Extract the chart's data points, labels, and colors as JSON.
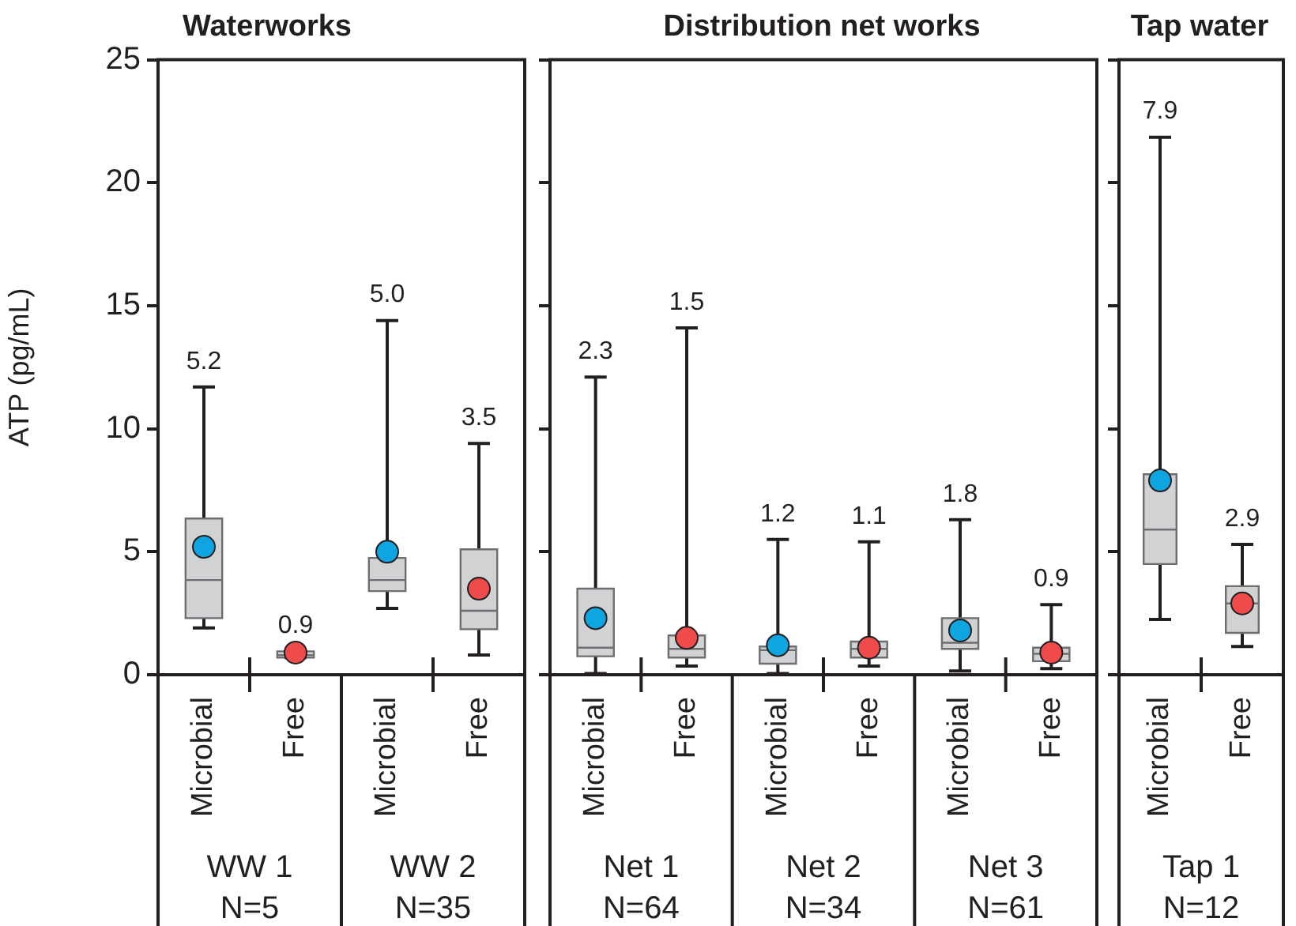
{
  "chart_data": [
    {
      "type": "box",
      "title": "Waterworks",
      "ylabel": "ATP (pg/mL)",
      "categories": [
        "WW 1\nN=5",
        "WW 2\nN=35"
      ],
      "ylim": [
        0,
        25
      ],
      "yticks": [
        0,
        5,
        10,
        15,
        20,
        25
      ],
      "grid": false,
      "legend": false,
      "series": [
        {
          "name": "Microbial",
          "color": "#d1d2d4",
          "value_labels": [
            "5.2",
            "5.0"
          ],
          "boxes": [
            {
              "low": 1.9,
              "q1": 2.3,
              "median": 3.85,
              "q3": 6.35,
              "high": 11.7
            },
            {
              "low": 2.7,
              "q1": 3.4,
              "median": 3.85,
              "q3": 4.75,
              "high": 14.4
            }
          ]
        },
        {
          "name": "Free",
          "color": "#d1d2d4",
          "value_labels": [
            "0.9",
            "3.5"
          ],
          "boxes": [
            {
              "low": 0.7,
              "q1": 0.7,
              "median": 0.8,
              "q3": 0.95,
              "high": 0.95
            },
            {
              "low": 0.8,
              "q1": 1.85,
              "median": 2.6,
              "q3": 5.1,
              "high": 9.4
            }
          ]
        },
        {
          "type": "scatter",
          "color": "#0ea5e0",
          "x": [
            "WW 1\nN=5",
            "WW 2\nN=35"
          ],
          "values": [
            5.2,
            5.0
          ]
        },
        {
          "type": "scatter",
          "color": "#ef4b4b",
          "x": [
            "WW 1\nN=5",
            "WW 2\nN=35"
          ],
          "values": [
            0.9,
            3.5
          ]
        }
      ]
    },
    {
      "type": "box",
      "title": "Distribution net works",
      "categories": [
        "Net 1\nN=64",
        "Net 2\nN=34",
        "Net 3\nN=61"
      ],
      "ylim": [
        0,
        25
      ],
      "yticks": [
        0,
        5,
        10,
        15,
        20,
        25
      ],
      "grid": false,
      "legend": false,
      "tick_labels": "x",
      "series": [
        {
          "name": "Microbial",
          "color": "#d1d2d4",
          "value_labels": [
            "2.3",
            "1.2",
            "1.8"
          ],
          "boxes": [
            {
              "low": 0.05,
              "q1": 0.75,
              "median": 1.1,
              "q3": 3.5,
              "high": 12.1
            },
            {
              "low": 0.05,
              "q1": 0.45,
              "median": 1.0,
              "q3": 1.15,
              "high": 5.5
            },
            {
              "low": 0.15,
              "q1": 1.05,
              "median": 1.3,
              "q3": 2.3,
              "high": 6.3
            }
          ]
        },
        {
          "name": "Free",
          "color": "#d1d2d4",
          "value_labels": [
            "1.5",
            "1.1",
            "0.9"
          ],
          "boxes": [
            {
              "low": 0.35,
              "q1": 0.7,
              "median": 1.05,
              "q3": 1.6,
              "high": 14.1
            },
            {
              "low": 0.35,
              "q1": 0.7,
              "median": 1.05,
              "q3": 1.35,
              "high": 5.4
            },
            {
              "low": 0.25,
              "q1": 0.55,
              "median": 0.85,
              "q3": 1.1,
              "high": 2.85
            }
          ]
        },
        {
          "type": "scatter",
          "color": "#0ea5e0",
          "x": [
            "Net 1\nN=64",
            "Net 2\nN=34",
            "Net 3\nN=61"
          ],
          "values": [
            2.3,
            1.2,
            1.8
          ]
        },
        {
          "type": "scatter",
          "color": "#ef4b4b",
          "x": [
            "Net 1\nN=64",
            "Net 2\nN=34",
            "Net 3\nN=61"
          ],
          "values": [
            1.5,
            1.1,
            0.9
          ]
        }
      ]
    },
    {
      "type": "box",
      "title": "Tap water",
      "categories": [
        "Tap 1\nN=12"
      ],
      "ylim": [
        0,
        25
      ],
      "yticks": [
        0,
        5,
        10,
        15,
        20,
        25
      ],
      "grid": false,
      "legend": false,
      "tick_labels": "x",
      "series": [
        {
          "name": "Microbial",
          "color": "#d1d2d4",
          "value_labels": [
            "7.9"
          ],
          "boxes": [
            {
              "low": 2.25,
              "q1": 4.5,
              "median": 5.9,
              "q3": 8.15,
              "high": 21.85
            }
          ]
        },
        {
          "name": "Free",
          "color": "#d1d2d4",
          "value_labels": [
            "2.9"
          ],
          "boxes": [
            {
              "low": 1.15,
              "q1": 1.7,
              "median": 2.9,
              "q3": 3.6,
              "high": 5.3
            }
          ]
        },
        {
          "type": "scatter",
          "color": "#0ea5e0",
          "x": [
            "Tap 1\nN=12"
          ],
          "values": [
            7.9
          ]
        },
        {
          "type": "scatter",
          "color": "#ef4b4b",
          "x": [
            "Tap 1\nN=12"
          ],
          "values": [
            2.9
          ]
        }
      ]
    }
  ]
}
